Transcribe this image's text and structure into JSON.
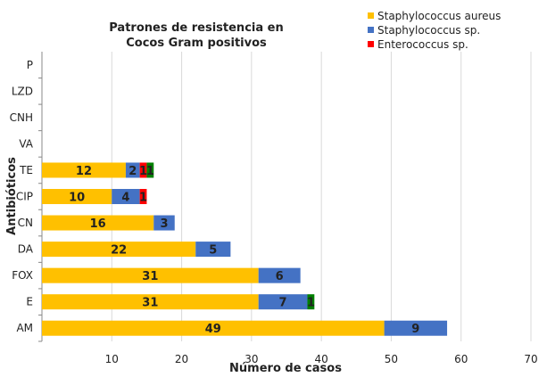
{
  "chart_data": {
    "type": "bar",
    "orientation": "horizontal",
    "stacked": true,
    "title": "Patrones de resistencia en Cocos Gram positivos",
    "title_lines": [
      "Patrones de resistencia en",
      "Cocos Gram positivos"
    ],
    "xlabel": "Número de casos",
    "ylabel": "Antibióticos",
    "xlim": [
      0,
      70
    ],
    "xticks": [
      10,
      20,
      30,
      40,
      50,
      60,
      70
    ],
    "grid": true,
    "legend_placement": "top-right",
    "categories": [
      "AM",
      "E",
      "FOX",
      "DA",
      "CN",
      "CIP",
      "TE",
      "VA",
      "CNH",
      "LZD",
      "P"
    ],
    "series": [
      {
        "name": "Staphylococcus aureus",
        "color": "#FFC000",
        "values": [
          49,
          31,
          31,
          22,
          16,
          10,
          12,
          0,
          0,
          0,
          0
        ]
      },
      {
        "name": "Staphylococcus sp.",
        "color": "#4472C4",
        "values": [
          9,
          7,
          6,
          5,
          3,
          4,
          2,
          0,
          0,
          0,
          0
        ]
      },
      {
        "name": "Enterococcus sp.",
        "color": "#FF0000",
        "values": [
          0,
          0,
          0,
          0,
          0,
          1,
          1,
          0,
          0,
          0,
          0
        ]
      },
      {
        "color": "#008000",
        "values": [
          0,
          1,
          0,
          0,
          0,
          0,
          1,
          0,
          0,
          0,
          0
        ]
      }
    ]
  }
}
